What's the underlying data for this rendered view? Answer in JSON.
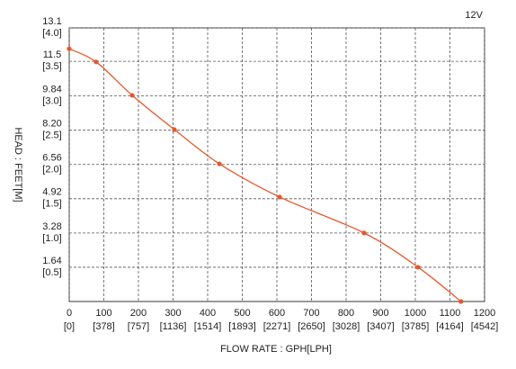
{
  "chart_data": {
    "type": "line",
    "x_label": "FLOW RATE : GPH[LPH]",
    "y_label": "HEAD : FEET[M]",
    "x": [
      0,
      78,
      182,
      304,
      434,
      608,
      852,
      1008,
      1132
    ],
    "series": [
      {
        "name": "12V",
        "color": "#e8572a",
        "values": [
          12.1,
          11.47,
          9.87,
          8.23,
          6.59,
          5.0,
          3.28,
          1.64,
          0
        ]
      }
    ],
    "xlim": [
      0,
      1200
    ],
    "ylim": [
      0,
      13.1
    ],
    "xticks": [
      {
        "value": 0,
        "label": "0",
        "lph_label": "[0]"
      },
      {
        "value": 100,
        "label": "100",
        "lph_label": "[378]"
      },
      {
        "value": 200,
        "label": "200",
        "lph_label": "[757]"
      },
      {
        "value": 300,
        "label": "300",
        "lph_label": "[1136]"
      },
      {
        "value": 400,
        "label": "400",
        "lph_label": "[1514]"
      },
      {
        "value": 500,
        "label": "500",
        "lph_label": "[1893]"
      },
      {
        "value": 600,
        "label": "600",
        "lph_label": "[2271]"
      },
      {
        "value": 700,
        "label": "700",
        "lph_label": "[2650]"
      },
      {
        "value": 800,
        "label": "800",
        "lph_label": "[3028]"
      },
      {
        "value": 900,
        "label": "900",
        "lph_label": "[3407]"
      },
      {
        "value": 1000,
        "label": "1000",
        "lph_label": "[3785]"
      },
      {
        "value": 1100,
        "label": "1100",
        "lph_label": "[4164]"
      },
      {
        "value": 1200,
        "label": "1200",
        "lph_label": "[4542]"
      }
    ],
    "yticks": [
      {
        "value": 1.64,
        "label": "1.64",
        "m_label": "[0.5]"
      },
      {
        "value": 3.28,
        "label": "3.28",
        "m_label": "[1.0]"
      },
      {
        "value": 4.92,
        "label": "4.92",
        "m_label": "[1.5]"
      },
      {
        "value": 6.56,
        "label": "6.56",
        "m_label": "[2.0]"
      },
      {
        "value": 8.2,
        "label": "8.20",
        "m_label": "[2.5]"
      },
      {
        "value": 9.84,
        "label": "9.84",
        "m_label": "[3.0]"
      },
      {
        "value": 11.5,
        "label": "11.5",
        "m_label": "[3.5]"
      },
      {
        "value": 13.1,
        "label": "13.1",
        "m_label": "[4.0]"
      }
    ],
    "grid": true
  }
}
